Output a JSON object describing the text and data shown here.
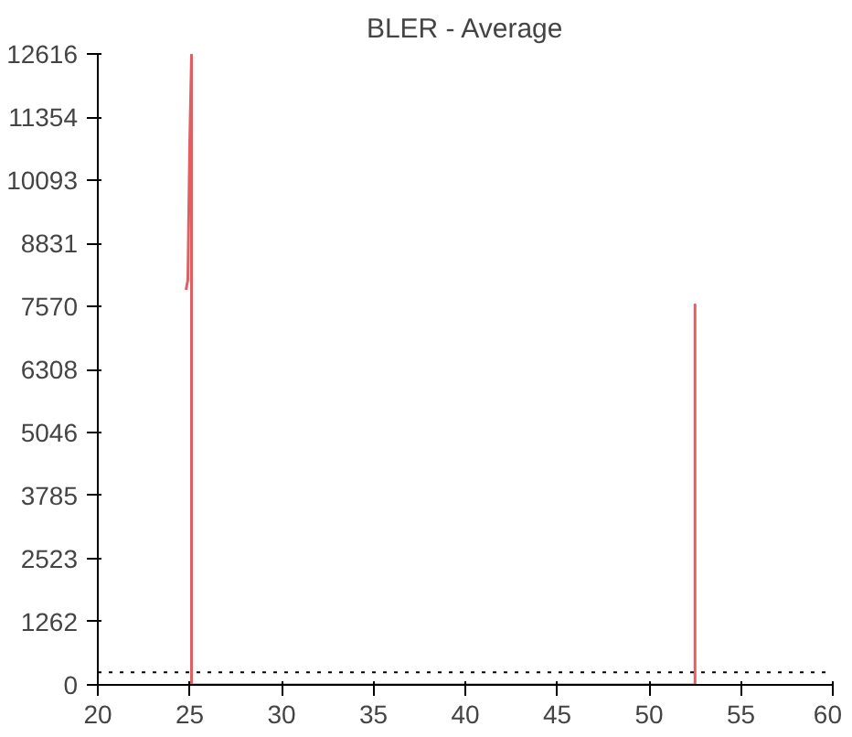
{
  "chart_data": {
    "type": "line",
    "title": "BLER - Average",
    "series": [
      {
        "color": "#e06060",
        "x": [
          24.8,
          24.9,
          25.0,
          25.1,
          25.1,
          40.0,
          52.5,
          52.5,
          52.5
        ],
        "values": [
          7900,
          8100,
          10800,
          12600,
          0,
          0,
          0,
          7600,
          0
        ]
      }
    ],
    "xlim": [
      20,
      60
    ],
    "xticks": [
      20,
      25,
      30,
      35,
      40,
      45,
      50,
      55,
      60
    ],
    "ylim": [
      0,
      12616
    ],
    "yticks": [
      0,
      1262,
      2523,
      3785,
      5046,
      6308,
      7570,
      8831,
      10093,
      11354,
      12616
    ],
    "ref_lines": [
      {
        "axis": "y",
        "value": 250,
        "color": "#000000",
        "line_style": "dotted"
      }
    ],
    "grid": false
  }
}
